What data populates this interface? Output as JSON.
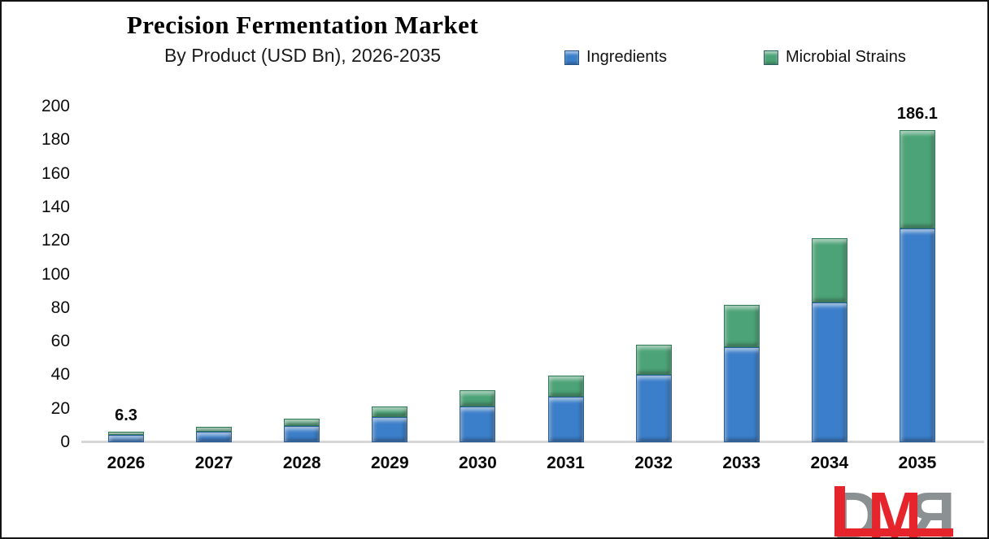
{
  "header": {
    "title": "Precision Fermentation Market",
    "subtitle": "By Product (USD Bn), 2026-2035"
  },
  "legend": [
    {
      "label": "Ingredients",
      "color": "#3b7ec9"
    },
    {
      "label": "Microbial Strains",
      "color": "#4ca377"
    }
  ],
  "chart_data": {
    "type": "bar",
    "stacked": true,
    "title": "Precision Fermentation Market",
    "subtitle": "By Product (USD Bn), 2026-2035",
    "categories": [
      "2026",
      "2027",
      "2028",
      "2029",
      "2030",
      "2031",
      "2032",
      "2033",
      "2034",
      "2035"
    ],
    "series": [
      {
        "name": "Ingredients",
        "color": "#3b7ec9",
        "values": [
          4.4,
          6.4,
          9.7,
          14.8,
          21.3,
          27.3,
          40.2,
          56.7,
          83.4,
          127.6
        ]
      },
      {
        "name": "Microbial Strains",
        "color": "#4ca377",
        "values": [
          1.9,
          2.8,
          4.3,
          6.6,
          9.5,
          12.2,
          17.9,
          25.3,
          38.0,
          58.5
        ]
      }
    ],
    "totals": [
      6.3,
      9.2,
      14.0,
      21.4,
      30.8,
      39.5,
      58.1,
      82.0,
      121.4,
      186.1
    ],
    "point_labels": [
      "6.3",
      null,
      null,
      null,
      null,
      null,
      null,
      null,
      null,
      "186.1"
    ],
    "ylabel": "",
    "xlabel": "",
    "ylim": [
      0,
      200
    ],
    "yticks": [
      0,
      20,
      40,
      60,
      80,
      100,
      120,
      140,
      160,
      180,
      200
    ],
    "grid": false,
    "legend_position": "top-right",
    "axis_line_color": "#d6d6d6"
  },
  "logo": {
    "letters": [
      "D",
      "M",
      "R"
    ],
    "red": "#e5242b",
    "gray": "#8b9192"
  }
}
